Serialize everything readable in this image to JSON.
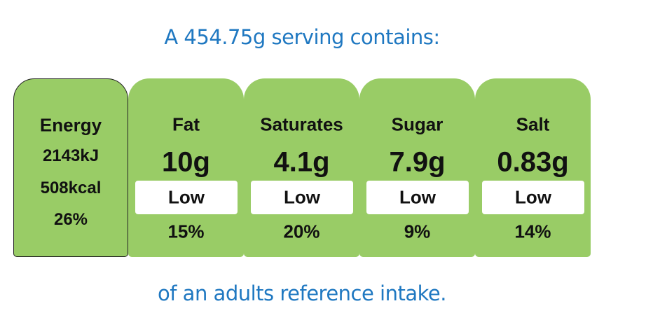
{
  "header": {
    "title": "A 454.75g serving contains:"
  },
  "energy": {
    "label": "Energy",
    "kj": "2143kJ",
    "kcal": "508kcal",
    "percent": "26%"
  },
  "nutrients": [
    {
      "name": "Fat",
      "amount": "10g",
      "level": "Low",
      "percent": "15%"
    },
    {
      "name": "Saturates",
      "amount": "4.1g",
      "level": "Low",
      "percent": "20%"
    },
    {
      "name": "Sugar",
      "amount": "7.9g",
      "level": "Low",
      "percent": "9%"
    },
    {
      "name": "Salt",
      "amount": "0.83g",
      "level": "Low",
      "percent": "14%"
    }
  ],
  "footer": {
    "text": "of an adults reference intake."
  }
}
